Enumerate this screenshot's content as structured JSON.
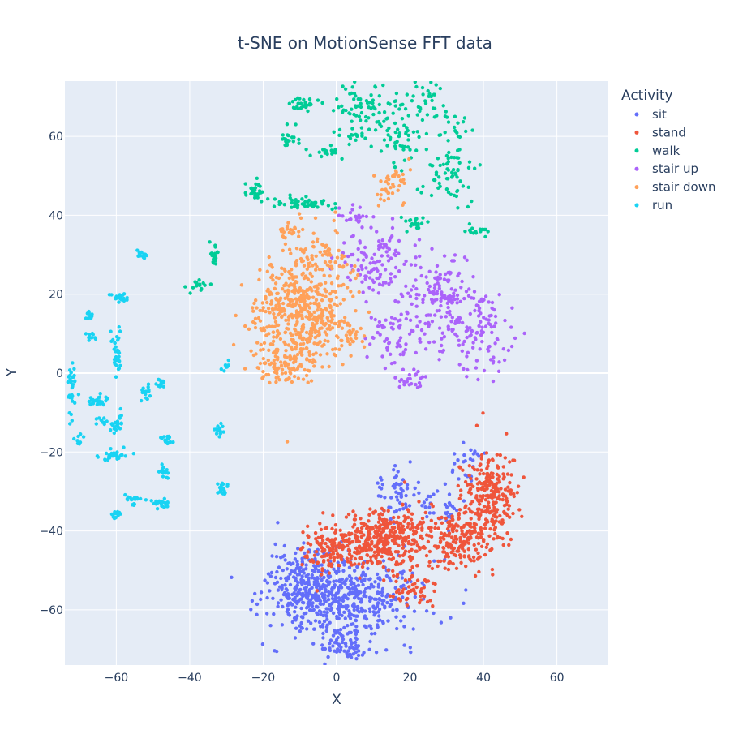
{
  "chart_data": {
    "type": "scatter",
    "title": "t-SNE on MotionSense   FFT data",
    "xlabel": "X",
    "ylabel": "Y",
    "xlim": [
      -74,
      74
    ],
    "ylim": [
      -74,
      74
    ],
    "xticks": [
      -60,
      -40,
      -20,
      0,
      20,
      40,
      60
    ],
    "yticks": [
      -60,
      -40,
      -20,
      0,
      20,
      40,
      60
    ],
    "grid": true,
    "legend_title": "Activity",
    "legend_position": "top-right",
    "series": [
      {
        "name": "sit",
        "color": "#636efa",
        "clusters": [
          {
            "center": [
              2,
              -58
            ],
            "spread": [
              13,
              7
            ],
            "count": 520
          },
          {
            "center": [
              -10,
              -52
            ],
            "spread": [
              6,
              6
            ],
            "count": 160
          },
          {
            "center": [
              17,
              -30
            ],
            "spread": [
              4,
              4
            ],
            "count": 60
          },
          {
            "center": [
              29,
              -34
            ],
            "spread": [
              3,
              3
            ],
            "count": 30
          },
          {
            "center": [
              35,
              -23
            ],
            "spread": [
              3,
              3
            ],
            "count": 25
          },
          {
            "center": [
              3,
              -70
            ],
            "spread": [
              5,
              2
            ],
            "count": 40
          }
        ]
      },
      {
        "name": "stand",
        "color": "#ef553b",
        "clusters": [
          {
            "center": [
              12,
              -42
            ],
            "spread": [
              10,
              5
            ],
            "count": 420
          },
          {
            "center": [
              -2,
              -45
            ],
            "spread": [
              4,
              4
            ],
            "count": 80
          },
          {
            "center": [
              33,
              -42
            ],
            "spread": [
              7,
              5
            ],
            "count": 200
          },
          {
            "center": [
              42,
              -30
            ],
            "spread": [
              5,
              7
            ],
            "count": 220
          },
          {
            "center": [
              20,
              -54
            ],
            "spread": [
              4,
              3
            ],
            "count": 50
          }
        ]
      },
      {
        "name": "walk",
        "color": "#00cc96",
        "clusters": [
          {
            "center": [
              -9,
              68
            ],
            "spread": [
              3,
              1
            ],
            "count": 30
          },
          {
            "center": [
              -13,
              59
            ],
            "spread": [
              2,
              2
            ],
            "count": 20
          },
          {
            "center": [
              -2,
              56
            ],
            "spread": [
              3,
              1
            ],
            "count": 20
          },
          {
            "center": [
              7,
              68
            ],
            "spread": [
              5,
              4
            ],
            "count": 60
          },
          {
            "center": [
              18,
              62
            ],
            "spread": [
              5,
              6
            ],
            "count": 70
          },
          {
            "center": [
              25,
              70
            ],
            "spread": [
              3,
              3
            ],
            "count": 25
          },
          {
            "center": [
              30,
              50
            ],
            "spread": [
              4,
              5
            ],
            "count": 60
          },
          {
            "center": [
              32,
              62
            ],
            "spread": [
              3,
              3
            ],
            "count": 20
          },
          {
            "center": [
              -22,
              46
            ],
            "spread": [
              2,
              2
            ],
            "count": 30
          },
          {
            "center": [
              -10,
              43
            ],
            "spread": [
              5,
              1
            ],
            "count": 50
          },
          {
            "center": [
              22,
              38
            ],
            "spread": [
              2,
              1
            ],
            "count": 20
          },
          {
            "center": [
              38,
              36
            ],
            "spread": [
              2,
              1
            ],
            "count": 15
          },
          {
            "center": [
              -33,
              29
            ],
            "spread": [
              1,
              2
            ],
            "count": 20
          },
          {
            "center": [
              -38,
              22
            ],
            "spread": [
              2,
              1
            ],
            "count": 15
          },
          {
            "center": [
              5,
              60
            ],
            "spread": [
              3,
              1
            ],
            "count": 15
          }
        ]
      },
      {
        "name": "stair up",
        "color": "#ab63fa",
        "clusters": [
          {
            "center": [
              10,
              28
            ],
            "spread": [
              6,
              6
            ],
            "count": 110
          },
          {
            "center": [
              28,
              18
            ],
            "spread": [
              7,
              8
            ],
            "count": 160
          },
          {
            "center": [
              40,
              10
            ],
            "spread": [
              6,
              7
            ],
            "count": 100
          },
          {
            "center": [
              16,
              10
            ],
            "spread": [
              5,
              5
            ],
            "count": 60
          },
          {
            "center": [
              20,
              -2
            ],
            "spread": [
              3,
              2
            ],
            "count": 25
          },
          {
            "center": [
              5,
              40
            ],
            "spread": [
              3,
              2
            ],
            "count": 20
          }
        ]
      },
      {
        "name": "stair down",
        "color": "#ffa15a",
        "clusters": [
          {
            "center": [
              -10,
              15
            ],
            "spread": [
              8,
              9
            ],
            "count": 500
          },
          {
            "center": [
              -15,
              2
            ],
            "spread": [
              5,
              3
            ],
            "count": 80
          },
          {
            "center": [
              -4,
              28
            ],
            "spread": [
              5,
              6
            ],
            "count": 80
          },
          {
            "center": [
              15,
              48
            ],
            "spread": [
              4,
              4
            ],
            "count": 40
          },
          {
            "center": [
              5,
              10
            ],
            "spread": [
              3,
              3
            ],
            "count": 25
          },
          {
            "center": [
              -13,
              36
            ],
            "spread": [
              2,
              2
            ],
            "count": 20
          }
        ]
      },
      {
        "name": "run",
        "color": "#19d3f3",
        "clusters": [
          {
            "center": [
              -53,
              30
            ],
            "spread": [
              1,
              1
            ],
            "count": 15
          },
          {
            "center": [
              -59,
              19
            ],
            "spread": [
              2,
              1
            ],
            "count": 25
          },
          {
            "center": [
              -67,
              15
            ],
            "spread": [
              1,
              1
            ],
            "count": 10
          },
          {
            "center": [
              -67,
              9
            ],
            "spread": [
              1,
              1
            ],
            "count": 10
          },
          {
            "center": [
              -60,
              5
            ],
            "spread": [
              1,
              3
            ],
            "count": 35
          },
          {
            "center": [
              -72,
              -4
            ],
            "spread": [
              1,
              5
            ],
            "count": 35
          },
          {
            "center": [
              -65,
              -7
            ],
            "spread": [
              2,
              1
            ],
            "count": 25
          },
          {
            "center": [
              -60,
              -13
            ],
            "spread": [
              1,
              2
            ],
            "count": 25
          },
          {
            "center": [
              -64,
              -12
            ],
            "spread": [
              1,
              1
            ],
            "count": 10
          },
          {
            "center": [
              -61,
              -21
            ],
            "spread": [
              2,
              1
            ],
            "count": 30
          },
          {
            "center": [
              -52,
              -5
            ],
            "spread": [
              1,
              1
            ],
            "count": 15
          },
          {
            "center": [
              -48,
              -3
            ],
            "spread": [
              1,
              1
            ],
            "count": 15
          },
          {
            "center": [
              -46,
              -17
            ],
            "spread": [
              1,
              1
            ],
            "count": 20
          },
          {
            "center": [
              -47,
              -25
            ],
            "spread": [
              1,
              1
            ],
            "count": 15
          },
          {
            "center": [
              -32,
              -14
            ],
            "spread": [
              1,
              1
            ],
            "count": 15
          },
          {
            "center": [
              -31,
              -29
            ],
            "spread": [
              1,
              1
            ],
            "count": 20
          },
          {
            "center": [
              -55,
              -32
            ],
            "spread": [
              2,
              1
            ],
            "count": 20
          },
          {
            "center": [
              -48,
              -33
            ],
            "spread": [
              2,
              1
            ],
            "count": 20
          },
          {
            "center": [
              -60,
              -36
            ],
            "spread": [
              1,
              1
            ],
            "count": 15
          },
          {
            "center": [
              -70,
              -17
            ],
            "spread": [
              1,
              1
            ],
            "count": 8
          },
          {
            "center": [
              -30,
              2
            ],
            "spread": [
              1,
              1
            ],
            "count": 8
          }
        ]
      }
    ]
  }
}
